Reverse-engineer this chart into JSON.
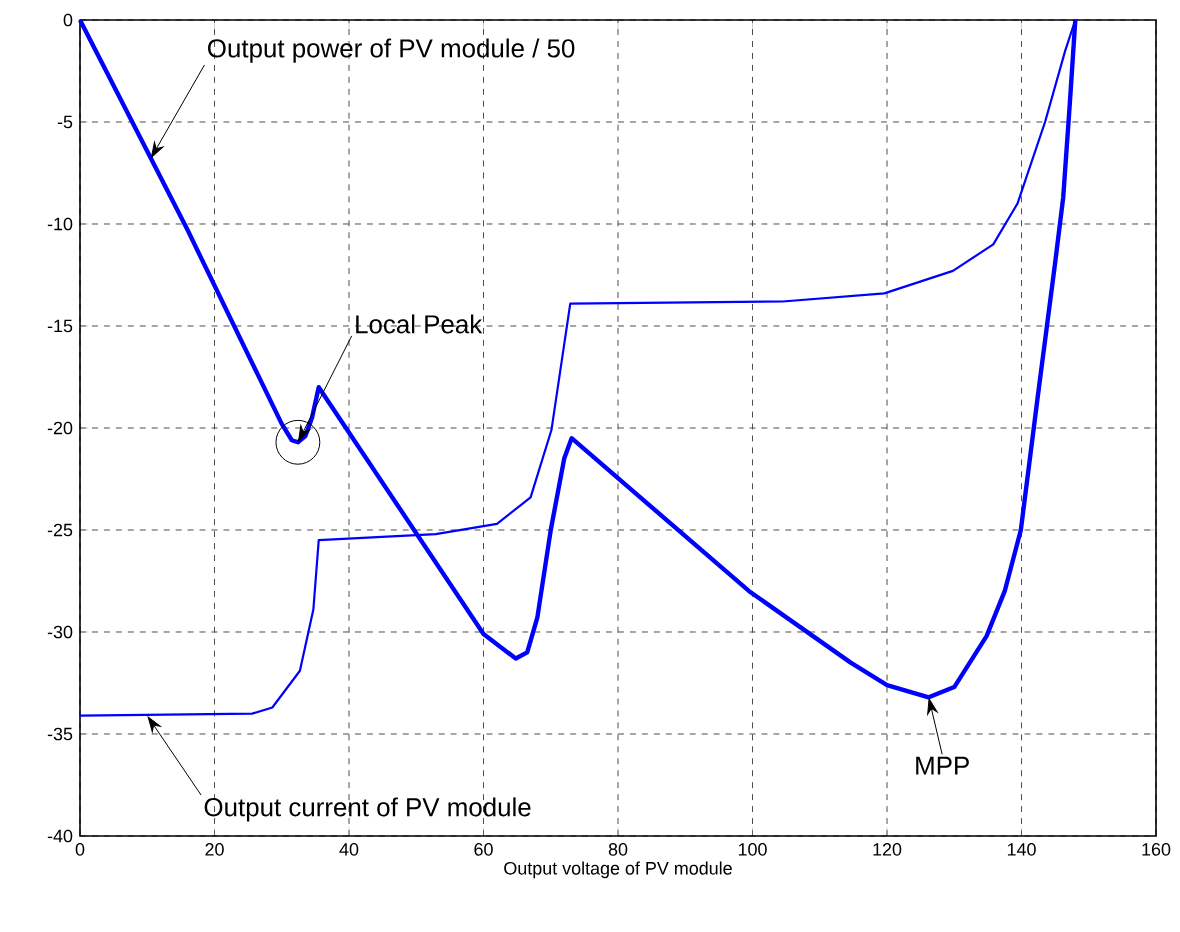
{
  "chart_data": {
    "type": "line",
    "xlabel": "Output voltage of PV module",
    "xlim": [
      0,
      160
    ],
    "ylim": [
      -40,
      0
    ],
    "xticks": [
      0,
      20,
      40,
      60,
      80,
      100,
      120,
      140,
      160
    ],
    "yticks": [
      -40,
      -35,
      -30,
      -25,
      -20,
      -15,
      -10,
      -5,
      0
    ],
    "grid": true,
    "marker": "none",
    "line_style": "solid",
    "series": [
      {
        "color": "#0000ff",
        "x": [
          0,
          16,
          30,
          31.5,
          32.4,
          33.5,
          34.5,
          35.5,
          60,
          64.8,
          66.5,
          68,
          70,
          72,
          73.1,
          99.5,
          114.6,
          120,
          126.2,
          130,
          134.8,
          137.5,
          139.9,
          142.4,
          145,
          146.2,
          147.2,
          148
        ],
        "values": [
          0,
          -10.3,
          -19.8,
          -20.6,
          -20.7,
          -20.4,
          -19.5,
          -18,
          -30.1,
          -31.3,
          -31,
          -29.3,
          -25,
          -21.5,
          -20.5,
          -28,
          -31.5,
          -32.6,
          -33.2,
          -32.7,
          -30.2,
          -28,
          -25,
          -18.5,
          -11.9,
          -8.7,
          -4,
          0
        ]
      },
      {
        "color": "#0000ff",
        "x": [
          0,
          25.6,
          28.6,
          32.7,
          34.7,
          35.5,
          52.9,
          62,
          67,
          70.1,
          72.9,
          104.5,
          119.6,
          129.8,
          135.8,
          139.4,
          143.5,
          146.5,
          148
        ],
        "values": [
          -34.1,
          -34,
          -33.7,
          -31.9,
          -28.9,
          -25.5,
          -25.2,
          -24.7,
          -23.4,
          -20.1,
          -13.9,
          -13.8,
          -13.4,
          -12.3,
          -11,
          -9,
          -5,
          -1.5,
          0
        ]
      }
    ],
    "annotations": [
      {
        "text": "Output power of PV module / 50",
        "x": 10.5,
        "y": -6.8
      },
      {
        "text": "Local Peak",
        "x": 32.4,
        "y": -20.7
      },
      {
        "text": "MPP",
        "x": 126.2,
        "y": -33.2
      },
      {
        "text": "Output current of PV module",
        "x": 10,
        "y": -34.1
      }
    ]
  }
}
